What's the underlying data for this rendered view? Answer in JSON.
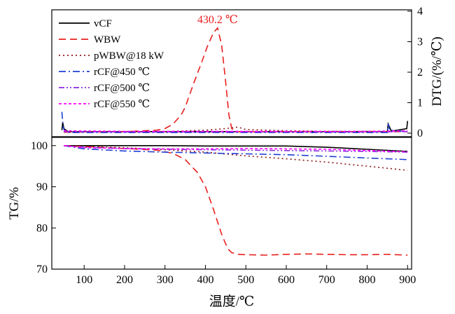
{
  "chart_data": [
    {
      "type": "line",
      "panel": "bottom",
      "xlabel": "温度/℃",
      "ylabel": "TG/%",
      "xlim": [
        20,
        910
      ],
      "ylim": [
        70,
        102
      ],
      "xticks": [
        100,
        200,
        300,
        400,
        500,
        600,
        700,
        800,
        900
      ],
      "yticks": [
        70,
        80,
        90,
        100
      ],
      "series": [
        {
          "name": "vCF",
          "color": "#000000",
          "style": "solid",
          "x": [
            50,
            100,
            200,
            300,
            400,
            500,
            600,
            700,
            800,
            900
          ],
          "y": [
            100,
            100,
            100,
            100,
            99.9,
            99.9,
            99.9,
            99.6,
            99.1,
            98.6
          ]
        },
        {
          "name": "WBW",
          "color": "#e8201e",
          "style": "dashed",
          "x": [
            50,
            100,
            200,
            280,
            320,
            350,
            380,
            400,
            420,
            440,
            455,
            465,
            480,
            500,
            550,
            600,
            650,
            700,
            750,
            800,
            850,
            900
          ],
          "y": [
            100,
            99.8,
            99.3,
            98.9,
            98.1,
            96.6,
            93.5,
            90,
            84.5,
            78.5,
            75,
            74,
            73.6,
            73.5,
            73.4,
            73.6,
            73.7,
            73.6,
            73.5,
            73.5,
            73.6,
            73.4
          ],
          "peak_label": "430.2 ℃"
        },
        {
          "name": "pWBW@18 kW",
          "color": "#8b1a1a",
          "style": "dotted",
          "x": [
            50,
            100,
            200,
            300,
            400,
            500,
            600,
            700,
            800,
            900
          ],
          "y": [
            100,
            99.8,
            99.5,
            99,
            98.4,
            97.5,
            96.8,
            96,
            95,
            94
          ]
        },
        {
          "name": "rCF@450 ℃",
          "color": "#1f3fd6",
          "style": "dashdot",
          "x": [
            50,
            100,
            200,
            300,
            400,
            500,
            600,
            700,
            800,
            900
          ],
          "y": [
            100,
            99.2,
            98.7,
            98.4,
            98.2,
            98,
            97.8,
            97.4,
            97,
            96.6
          ]
        },
        {
          "name": "rCF@500 ℃",
          "color": "#8a2be2",
          "style": "dashdotdot",
          "x": [
            50,
            100,
            200,
            300,
            400,
            500,
            600,
            700,
            800,
            900
          ],
          "y": [
            100,
            99.6,
            99.3,
            99.1,
            99,
            98.9,
            98.8,
            98.7,
            98.6,
            98.4
          ]
        },
        {
          "name": "rCF@550 ℃",
          "color": "#ff00ff",
          "style": "shortdash",
          "x": [
            50,
            100,
            200,
            300,
            400,
            500,
            600,
            700,
            800,
            900
          ],
          "y": [
            100,
            99.5,
            99.3,
            99.2,
            99.2,
            99.3,
            99.2,
            99.1,
            98.8,
            98.5
          ]
        }
      ]
    },
    {
      "type": "line",
      "panel": "top",
      "ylabel": "DTG/(%/℃)",
      "ylim": [
        -0.1,
        4
      ],
      "yticks": [
        0,
        1,
        2,
        3,
        4
      ],
      "legend_position": "top-left",
      "series": [
        {
          "name": "vCF",
          "color": "#000000",
          "style": "solid",
          "x": [
            45,
            47,
            50,
            60,
            100,
            200,
            300,
            400,
            500,
            600,
            700,
            800,
            850,
            852,
            860,
            898,
            900
          ],
          "y": [
            0.1,
            0.35,
            0.15,
            0.05,
            0.05,
            0.05,
            0.05,
            0.05,
            0.05,
            0.05,
            0.05,
            0.05,
            0.05,
            0.3,
            0.07,
            0.15,
            0.4
          ]
        },
        {
          "name": "WBW",
          "color": "#e8201e",
          "style": "dashed",
          "x": [
            50,
            200,
            280,
            300,
            320,
            340,
            350,
            370,
            390,
            405,
            420,
            430,
            440,
            450,
            458,
            465,
            480,
            600,
            900
          ],
          "y": [
            0.03,
            0.05,
            0.1,
            0.15,
            0.3,
            0.6,
            0.85,
            1.6,
            2.3,
            2.85,
            3.3,
            3.45,
            2.9,
            1.7,
            0.6,
            0.15,
            0.05,
            0.05,
            0.05
          ]
        },
        {
          "name": "pWBW@18 kW",
          "color": "#8b1a1a",
          "style": "dotted",
          "x": [
            50,
            200,
            300,
            400,
            450,
            480,
            500,
            600,
            700,
            800,
            900
          ],
          "y": [
            0.05,
            0.05,
            0.05,
            0.1,
            0.15,
            0.2,
            0.12,
            0.08,
            0.06,
            0.06,
            0.05
          ]
        },
        {
          "name": "rCF@450 ℃",
          "color": "#1f3fd6",
          "style": "dashdot",
          "x": [
            45,
            48,
            52,
            60,
            200,
            400,
            600,
            800,
            850,
            852,
            856,
            900
          ],
          "y": [
            0.7,
            0.2,
            0.05,
            0.02,
            0.02,
            0.02,
            0.02,
            0.02,
            0.02,
            0.3,
            0.1,
            0.05
          ]
        },
        {
          "name": "rCF@500 ℃",
          "color": "#8a2be2",
          "style": "dashdotdot",
          "x": [
            50,
            200,
            400,
            600,
            800,
            900
          ],
          "y": [
            0.05,
            0.04,
            0.04,
            0.04,
            0.04,
            0.05
          ]
        },
        {
          "name": "rCF@550 ℃",
          "color": "#ff00ff",
          "style": "shortdash",
          "x": [
            50,
            200,
            400,
            600,
            800,
            900
          ],
          "y": [
            0.08,
            0.06,
            0.06,
            0.06,
            0.06,
            0.08
          ]
        }
      ]
    }
  ]
}
